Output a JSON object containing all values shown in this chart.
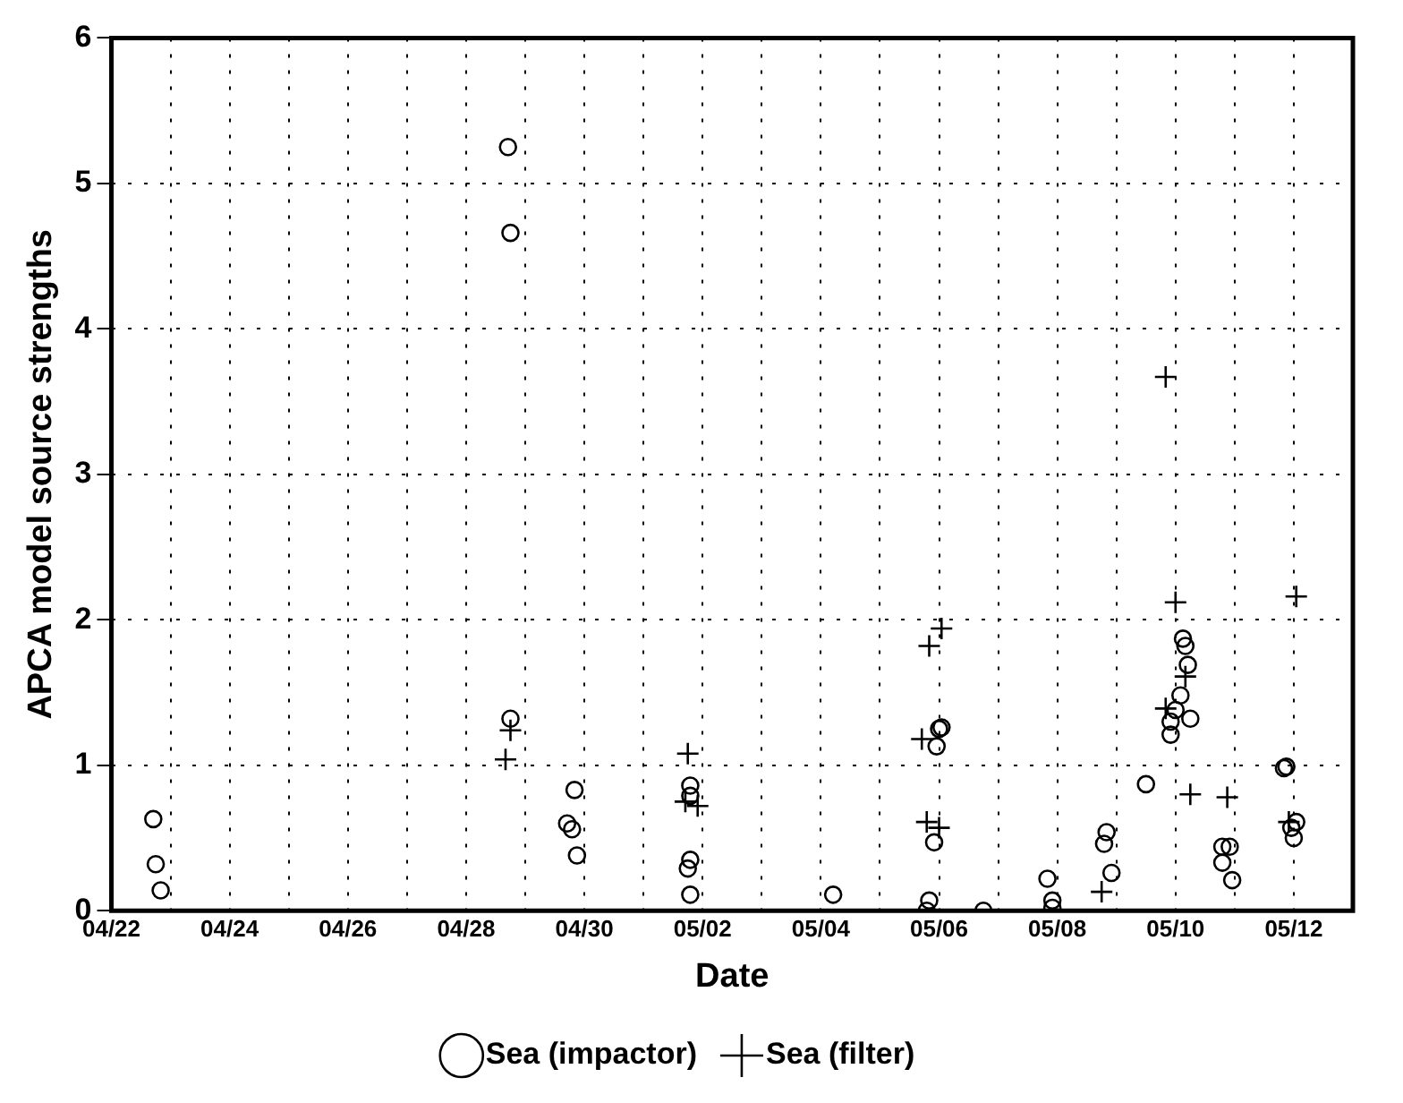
{
  "chart_data": {
    "type": "scatter",
    "xlabel": "Date",
    "ylabel": "APCA model source strengths",
    "xlim": [
      "--04-22",
      "--05-13"
    ],
    "ylim": [
      0,
      6
    ],
    "yticks": [
      0,
      1,
      2,
      3,
      4,
      5,
      6
    ],
    "xticks": [
      {
        "value": "--04-22",
        "label": "04/22"
      },
      {
        "value": "--04-23",
        "label": null
      },
      {
        "value": "--04-24",
        "label": "04/24"
      },
      {
        "value": "--04-25",
        "label": null
      },
      {
        "value": "--04-26",
        "label": "04/26"
      },
      {
        "value": "--04-27",
        "label": null
      },
      {
        "value": "--04-28",
        "label": "04/28"
      },
      {
        "value": "--04-29",
        "label": null
      },
      {
        "value": "--04-30",
        "label": "04/30"
      },
      {
        "value": "--05-01",
        "label": null
      },
      {
        "value": "--05-02",
        "label": "05/02"
      },
      {
        "value": "--05-03",
        "label": null
      },
      {
        "value": "--05-04",
        "label": "05/04"
      },
      {
        "value": "--05-05",
        "label": null
      },
      {
        "value": "--05-06",
        "label": "05/06"
      },
      {
        "value": "--05-07",
        "label": null
      },
      {
        "value": "--05-08",
        "label": "05/08"
      },
      {
        "value": "--05-09",
        "label": null
      },
      {
        "value": "--05-10",
        "label": "05/10"
      },
      {
        "value": "--05-11",
        "label": null
      },
      {
        "value": "--05-12",
        "label": "05/12"
      }
    ],
    "grid": true,
    "legend": "bottom",
    "series": [
      {
        "name": "Sea (impactor)",
        "color": "#000000",
        "marker": "circle",
        "x": [
          "--04-22T17:00",
          "--04-22T18:00",
          "--04-22T20:00",
          "--04-28T17:00",
          "--04-28T18:00",
          "--04-28T18:00",
          "--04-29T20:00",
          "--04-29T17:00",
          "--04-29T19:00",
          "--04-29T21:00",
          "--05-01T19:00",
          "--05-01T19:00",
          "--05-01T19:00",
          "--05-01T18:00",
          "--05-01T19:00",
          "--05-04T05:00",
          "--05-05T20:00",
          "--05-05T19:00",
          "--05-06T01:00",
          "--05-06T00:00",
          "--05-05T23:00",
          "--05-05T22:00",
          "--05-06T18:00",
          "--05-07T20:00",
          "--05-07T22:00",
          "--05-07T22:00",
          "--05-08T20:00",
          "--05-08T19:00",
          "--05-08T22:00",
          "--05-09T12:00",
          "--05-10T03:00",
          "--05-10T04:00",
          "--05-10T05:00",
          "--05-10T02:00",
          "--05-10T00:00",
          "--05-10T06:00",
          "--05-09T22:00",
          "--05-09T22:00",
          "--05-10T19:00",
          "--05-10T22:00",
          "--05-10T19:00",
          "--05-10T23:00",
          "--05-11T20:00",
          "--05-11T21:00",
          "--05-12T01:00",
          "--05-11T23:00",
          "--05-12T00:00"
        ],
        "values": [
          0.63,
          0.32,
          0.14,
          5.25,
          4.66,
          1.32,
          0.83,
          0.6,
          0.56,
          0.38,
          0.86,
          0.79,
          0.35,
          0.29,
          0.11,
          0.11,
          0.07,
          0.0,
          1.26,
          1.25,
          1.13,
          0.47,
          0.0,
          0.22,
          0.07,
          0.02,
          0.54,
          0.46,
          0.26,
          0.87,
          1.87,
          1.82,
          1.69,
          1.48,
          1.38,
          1.32,
          1.3,
          1.21,
          0.44,
          0.44,
          0.33,
          0.21,
          0.98,
          0.99,
          0.61,
          0.57,
          0.5
        ]
      },
      {
        "name": "Sea (filter)",
        "color": "#000000",
        "marker": "cross",
        "x": [
          "--04-28T16:00",
          "--04-28T18:00",
          "--05-01T18:00",
          "--05-01T17:00",
          "--05-01T22:00",
          "--05-05T20:00",
          "--05-06T01:00",
          "--05-05T17:00",
          "--05-05T19:00",
          "--05-06T00:00",
          "--05-08T18:00",
          "--05-09T20:00",
          "--05-10T00:00",
          "--05-10T04:00",
          "--05-09T20:00",
          "--05-10T06:00",
          "--05-10T21:00",
          "--05-12T01:00",
          "--05-11T22:00"
        ],
        "values": [
          1.04,
          1.24,
          1.08,
          0.75,
          0.72,
          1.82,
          1.94,
          1.18,
          0.61,
          0.57,
          0.13,
          3.67,
          2.12,
          1.61,
          1.39,
          0.8,
          0.78,
          2.16,
          0.61
        ]
      }
    ]
  }
}
